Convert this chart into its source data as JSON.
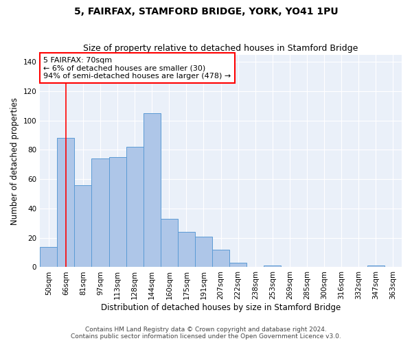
{
  "title": "5, FAIRFAX, STAMFORD BRIDGE, YORK, YO41 1PU",
  "subtitle": "Size of property relative to detached houses in Stamford Bridge",
  "xlabel": "Distribution of detached houses by size in Stamford Bridge",
  "ylabel": "Number of detached properties",
  "categories": [
    "50sqm",
    "66sqm",
    "81sqm",
    "97sqm",
    "113sqm",
    "128sqm",
    "144sqm",
    "160sqm",
    "175sqm",
    "191sqm",
    "207sqm",
    "222sqm",
    "238sqm",
    "253sqm",
    "269sqm",
    "285sqm",
    "300sqm",
    "316sqm",
    "332sqm",
    "347sqm",
    "363sqm"
  ],
  "values": [
    14,
    88,
    56,
    74,
    75,
    82,
    105,
    33,
    24,
    21,
    12,
    3,
    0,
    1,
    0,
    0,
    0,
    0,
    0,
    1,
    0
  ],
  "bar_color": "#aec6e8",
  "bar_edge_color": "#5b9bd5",
  "annotation_text_line1": "5 FAIRFAX: 70sqm",
  "annotation_text_line2": "← 6% of detached houses are smaller (30)",
  "annotation_text_line3": "94% of semi-detached houses are larger (478) →",
  "annotation_box_color": "white",
  "annotation_box_edge_color": "red",
  "vline_color": "red",
  "vline_x_data": 1.0,
  "ylim": [
    0,
    145
  ],
  "yticks": [
    0,
    20,
    40,
    60,
    80,
    100,
    120,
    140
  ],
  "footer_line1": "Contains HM Land Registry data © Crown copyright and database right 2024.",
  "footer_line2": "Contains public sector information licensed under the Open Government Licence v3.0.",
  "bg_color": "#eaf0f9",
  "grid_color": "white",
  "title_fontsize": 10,
  "subtitle_fontsize": 9,
  "axis_label_fontsize": 8.5,
  "tick_fontsize": 7.5,
  "footer_fontsize": 6.5,
  "annotation_fontsize": 8
}
